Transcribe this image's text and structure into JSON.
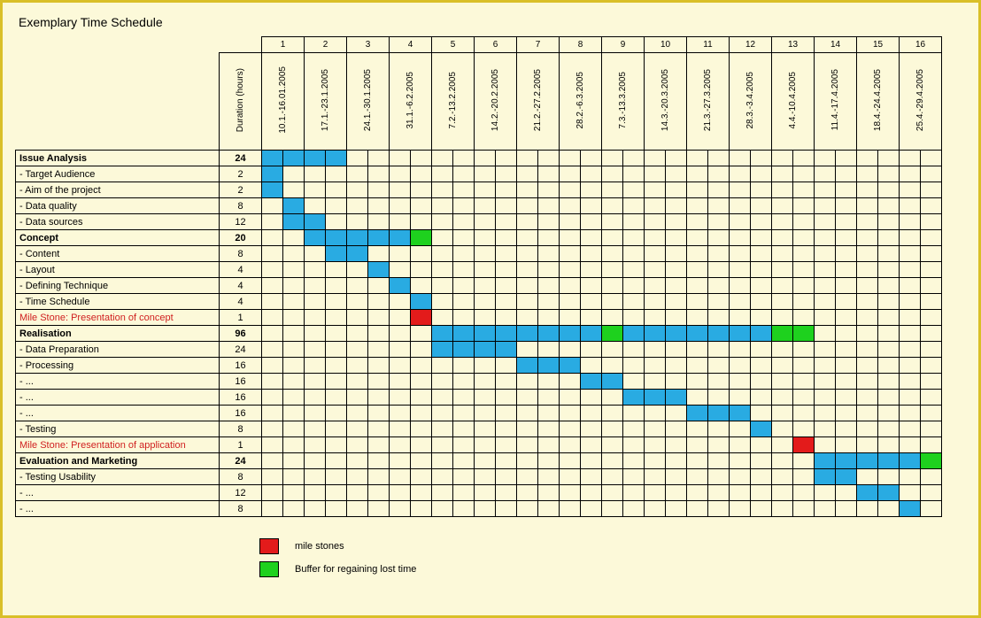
{
  "title": "Exemplary Time Schedule",
  "duration_header": "Duration (hours)",
  "colors": {
    "page_bg": "#fcf9d9",
    "page_border": "#d9bf28",
    "bar": "#29abe2",
    "milestone": "#e31b1b",
    "buffer": "#1ed11e",
    "grid": "#000000",
    "milestone_text": "#d02020"
  },
  "weeks": [
    {
      "num": "1",
      "range": "10.1.-16.01.2005"
    },
    {
      "num": "2",
      "range": "17.1.-23.1.2005"
    },
    {
      "num": "3",
      "range": "24.1.-30.1.2005"
    },
    {
      "num": "4",
      "range": "31.1.-6.2.2005"
    },
    {
      "num": "5",
      "range": "7.2.-13.2.2005"
    },
    {
      "num": "6",
      "range": "14.2.-20.2.2005"
    },
    {
      "num": "7",
      "range": "21.2.-27.2.2005"
    },
    {
      "num": "8",
      "range": "28.2.-6.3.2005"
    },
    {
      "num": "9",
      "range": "7.3.-13.3.2005"
    },
    {
      "num": "10",
      "range": "14.3.-20.3.2005"
    },
    {
      "num": "11",
      "range": "21.3.-27.3.2005"
    },
    {
      "num": "12",
      "range": "28.3.-3.4.2005"
    },
    {
      "num": "13",
      "range": "4.4.-10.4.2005"
    },
    {
      "num": "14",
      "range": "11.4.-17.4.2005"
    },
    {
      "num": "15",
      "range": "18.4.-24.4.2005"
    },
    {
      "num": "16",
      "range": "25.4.-29.4.2005"
    }
  ],
  "rows": [
    {
      "label": "Issue Analysis",
      "dur": "24",
      "bold": true,
      "cells": [
        1,
        1,
        1,
        1,
        0,
        0,
        0,
        0,
        0,
        0,
        0,
        0,
        0,
        0,
        0,
        0,
        0,
        0,
        0,
        0,
        0,
        0,
        0,
        0,
        0,
        0,
        0,
        0,
        0,
        0,
        0,
        0
      ]
    },
    {
      "label": " - Target Audience",
      "dur": "2",
      "cells": [
        1,
        0,
        0,
        0,
        0,
        0,
        0,
        0,
        0,
        0,
        0,
        0,
        0,
        0,
        0,
        0,
        0,
        0,
        0,
        0,
        0,
        0,
        0,
        0,
        0,
        0,
        0,
        0,
        0,
        0,
        0,
        0
      ]
    },
    {
      "label": " - Aim of the project",
      "dur": "2",
      "cells": [
        1,
        0,
        0,
        0,
        0,
        0,
        0,
        0,
        0,
        0,
        0,
        0,
        0,
        0,
        0,
        0,
        0,
        0,
        0,
        0,
        0,
        0,
        0,
        0,
        0,
        0,
        0,
        0,
        0,
        0,
        0,
        0
      ]
    },
    {
      "label": " - Data quality",
      "dur": "8",
      "cells": [
        0,
        1,
        0,
        0,
        0,
        0,
        0,
        0,
        0,
        0,
        0,
        0,
        0,
        0,
        0,
        0,
        0,
        0,
        0,
        0,
        0,
        0,
        0,
        0,
        0,
        0,
        0,
        0,
        0,
        0,
        0,
        0
      ]
    },
    {
      "label": " - Data sources",
      "dur": "12",
      "cells": [
        0,
        1,
        1,
        0,
        0,
        0,
        0,
        0,
        0,
        0,
        0,
        0,
        0,
        0,
        0,
        0,
        0,
        0,
        0,
        0,
        0,
        0,
        0,
        0,
        0,
        0,
        0,
        0,
        0,
        0,
        0,
        0
      ]
    },
    {
      "label": "Concept",
      "dur": "20",
      "bold": true,
      "cells": [
        0,
        0,
        1,
        1,
        1,
        1,
        1,
        3,
        0,
        0,
        0,
        0,
        0,
        0,
        0,
        0,
        0,
        0,
        0,
        0,
        0,
        0,
        0,
        0,
        0,
        0,
        0,
        0,
        0,
        0,
        0,
        0
      ]
    },
    {
      "label": " - Content",
      "dur": "8",
      "cells": [
        0,
        0,
        0,
        1,
        1,
        0,
        0,
        0,
        0,
        0,
        0,
        0,
        0,
        0,
        0,
        0,
        0,
        0,
        0,
        0,
        0,
        0,
        0,
        0,
        0,
        0,
        0,
        0,
        0,
        0,
        0,
        0
      ]
    },
    {
      "label": " - Layout",
      "dur": "4",
      "cells": [
        0,
        0,
        0,
        0,
        0,
        1,
        0,
        0,
        0,
        0,
        0,
        0,
        0,
        0,
        0,
        0,
        0,
        0,
        0,
        0,
        0,
        0,
        0,
        0,
        0,
        0,
        0,
        0,
        0,
        0,
        0,
        0
      ]
    },
    {
      "label": " - Defining Technique",
      "dur": "4",
      "cells": [
        0,
        0,
        0,
        0,
        0,
        0,
        1,
        0,
        0,
        0,
        0,
        0,
        0,
        0,
        0,
        0,
        0,
        0,
        0,
        0,
        0,
        0,
        0,
        0,
        0,
        0,
        0,
        0,
        0,
        0,
        0,
        0
      ]
    },
    {
      "label": " - Time Schedule",
      "dur": "4",
      "cells": [
        0,
        0,
        0,
        0,
        0,
        0,
        0,
        1,
        0,
        0,
        0,
        0,
        0,
        0,
        0,
        0,
        0,
        0,
        0,
        0,
        0,
        0,
        0,
        0,
        0,
        0,
        0,
        0,
        0,
        0,
        0,
        0
      ]
    },
    {
      "label": "Mile Stone: Presentation of concept",
      "dur": "1",
      "milestone": true,
      "cells": [
        0,
        0,
        0,
        0,
        0,
        0,
        0,
        2,
        0,
        0,
        0,
        0,
        0,
        0,
        0,
        0,
        0,
        0,
        0,
        0,
        0,
        0,
        0,
        0,
        0,
        0,
        0,
        0,
        0,
        0,
        0,
        0
      ]
    },
    {
      "label": "Realisation",
      "dur": "96",
      "bold": true,
      "cells": [
        0,
        0,
        0,
        0,
        0,
        0,
        0,
        0,
        1,
        1,
        1,
        1,
        1,
        1,
        1,
        1,
        3,
        1,
        1,
        1,
        1,
        1,
        1,
        1,
        3,
        3,
        0,
        0,
        0,
        0,
        0,
        0
      ]
    },
    {
      "label": " - Data Preparation",
      "dur": "24",
      "cells": [
        0,
        0,
        0,
        0,
        0,
        0,
        0,
        0,
        1,
        1,
        1,
        1,
        0,
        0,
        0,
        0,
        0,
        0,
        0,
        0,
        0,
        0,
        0,
        0,
        0,
        0,
        0,
        0,
        0,
        0,
        0,
        0
      ]
    },
    {
      "label": " - Processing",
      "dur": "16",
      "cells": [
        0,
        0,
        0,
        0,
        0,
        0,
        0,
        0,
        0,
        0,
        0,
        0,
        1,
        1,
        1,
        0,
        0,
        0,
        0,
        0,
        0,
        0,
        0,
        0,
        0,
        0,
        0,
        0,
        0,
        0,
        0,
        0
      ]
    },
    {
      "label": " - ...",
      "dur": "16",
      "cells": [
        0,
        0,
        0,
        0,
        0,
        0,
        0,
        0,
        0,
        0,
        0,
        0,
        0,
        0,
        0,
        1,
        1,
        0,
        0,
        0,
        0,
        0,
        0,
        0,
        0,
        0,
        0,
        0,
        0,
        0,
        0,
        0
      ]
    },
    {
      "label": " - ...",
      "dur": "16",
      "cells": [
        0,
        0,
        0,
        0,
        0,
        0,
        0,
        0,
        0,
        0,
        0,
        0,
        0,
        0,
        0,
        0,
        0,
        1,
        1,
        1,
        0,
        0,
        0,
        0,
        0,
        0,
        0,
        0,
        0,
        0,
        0,
        0
      ]
    },
    {
      "label": " - ...",
      "dur": "16",
      "cells": [
        0,
        0,
        0,
        0,
        0,
        0,
        0,
        0,
        0,
        0,
        0,
        0,
        0,
        0,
        0,
        0,
        0,
        0,
        0,
        0,
        1,
        1,
        1,
        0,
        0,
        0,
        0,
        0,
        0,
        0,
        0,
        0
      ]
    },
    {
      "label": " - Testing",
      "dur": "8",
      "cells": [
        0,
        0,
        0,
        0,
        0,
        0,
        0,
        0,
        0,
        0,
        0,
        0,
        0,
        0,
        0,
        0,
        0,
        0,
        0,
        0,
        0,
        0,
        0,
        1,
        0,
        0,
        0,
        0,
        0,
        0,
        0,
        0
      ]
    },
    {
      "label": "Mile Stone: Presentation of application",
      "dur": "1",
      "milestone": true,
      "cells": [
        0,
        0,
        0,
        0,
        0,
        0,
        0,
        0,
        0,
        0,
        0,
        0,
        0,
        0,
        0,
        0,
        0,
        0,
        0,
        0,
        0,
        0,
        0,
        0,
        0,
        2,
        0,
        0,
        0,
        0,
        0,
        0
      ]
    },
    {
      "label": "Evaluation and Marketing",
      "dur": "24",
      "bold": true,
      "cells": [
        0,
        0,
        0,
        0,
        0,
        0,
        0,
        0,
        0,
        0,
        0,
        0,
        0,
        0,
        0,
        0,
        0,
        0,
        0,
        0,
        0,
        0,
        0,
        0,
        0,
        0,
        1,
        1,
        1,
        1,
        1,
        3
      ]
    },
    {
      "label": " - Testing Usability",
      "dur": "8",
      "cells": [
        0,
        0,
        0,
        0,
        0,
        0,
        0,
        0,
        0,
        0,
        0,
        0,
        0,
        0,
        0,
        0,
        0,
        0,
        0,
        0,
        0,
        0,
        0,
        0,
        0,
        0,
        1,
        1,
        0,
        0,
        0,
        0
      ]
    },
    {
      "label": " - ...",
      "dur": "12",
      "cells": [
        0,
        0,
        0,
        0,
        0,
        0,
        0,
        0,
        0,
        0,
        0,
        0,
        0,
        0,
        0,
        0,
        0,
        0,
        0,
        0,
        0,
        0,
        0,
        0,
        0,
        0,
        0,
        0,
        1,
        1,
        0,
        0
      ]
    },
    {
      "label": " - ...",
      "dur": "8",
      "cells": [
        0,
        0,
        0,
        0,
        0,
        0,
        0,
        0,
        0,
        0,
        0,
        0,
        0,
        0,
        0,
        0,
        0,
        0,
        0,
        0,
        0,
        0,
        0,
        0,
        0,
        0,
        0,
        0,
        0,
        0,
        1,
        0
      ]
    }
  ],
  "legend": [
    {
      "color": "milestone",
      "label": "mile stones"
    },
    {
      "color": "buffer",
      "label": "Buffer for regaining lost time"
    }
  ]
}
